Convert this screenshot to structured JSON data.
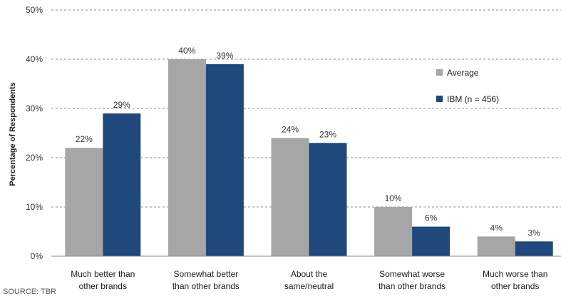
{
  "chart_data": {
    "type": "bar",
    "ylabel": "Percentage of Respondents",
    "ylim": [
      0,
      50
    ],
    "yticks": [
      "0%",
      "10%",
      "20%",
      "30%",
      "40%",
      "50%"
    ],
    "ytick_values": [
      0,
      10,
      20,
      30,
      40,
      50
    ],
    "grid": true,
    "legend_position": "right",
    "categories": [
      "Much better than\nother brands",
      "Somewhat better\nthan other brands",
      "About the\nsame/neutral",
      "Somewhat worse\nthan other brands",
      "Much worse than\nother brands"
    ],
    "series": [
      {
        "name": "Average",
        "color": "#a6a6a6",
        "values": [
          22,
          40,
          24,
          10,
          4
        ],
        "labels": [
          "22%",
          "40%",
          "24%",
          "10%",
          "4%"
        ]
      },
      {
        "name": "IBM (n = 456)",
        "color": "#1f497d",
        "values": [
          29,
          39,
          23,
          6,
          3
        ],
        "labels": [
          "29%",
          "39%",
          "23%",
          "6%",
          "3%"
        ]
      }
    ],
    "source": "SOURCE: TBR"
  }
}
